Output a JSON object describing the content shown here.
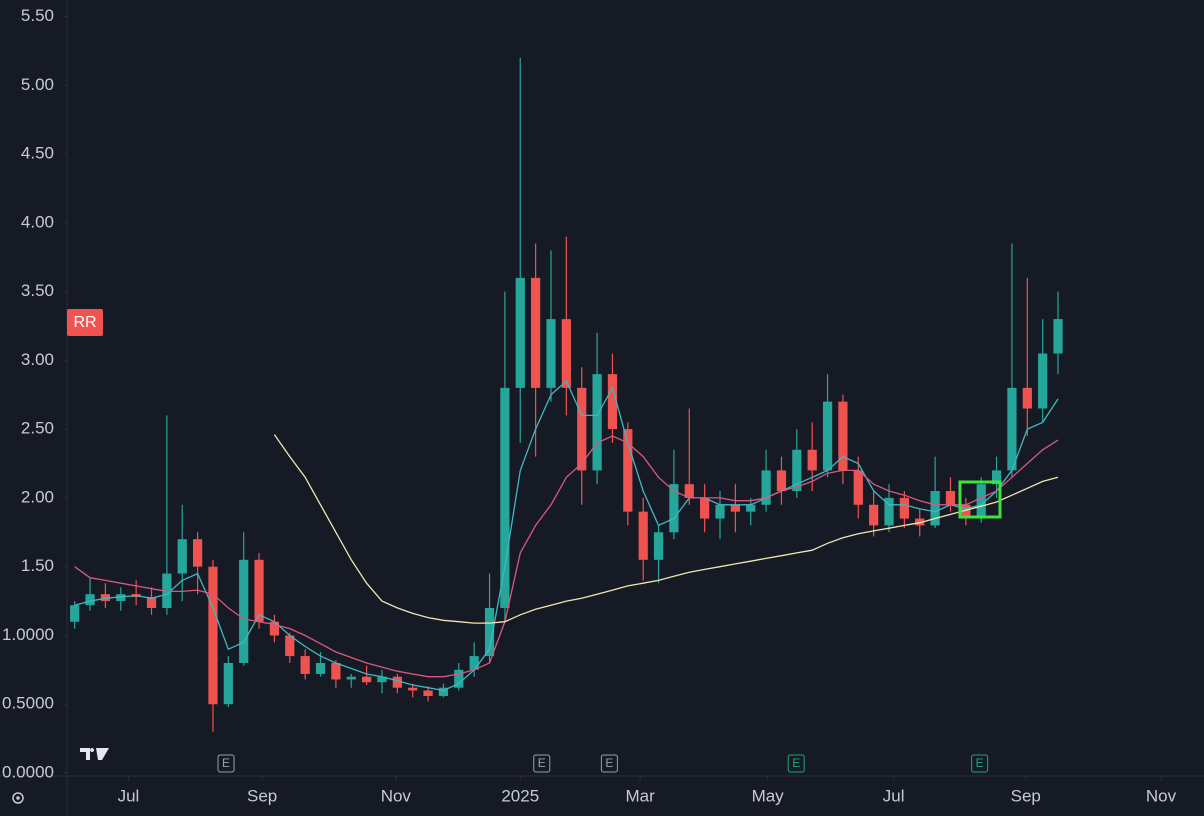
{
  "chart_data": {
    "type": "candlestick",
    "symbol_label": "RR",
    "up_color": "#26a69a",
    "down_color": "#ef5350",
    "xlim": [
      -0.5,
      73.5
    ],
    "xticks": [
      {
        "value": 3.5,
        "label": "Jul"
      },
      {
        "value": 12.2,
        "label": "Sep"
      },
      {
        "value": 20.9,
        "label": "Nov"
      },
      {
        "value": 29.0,
        "label": "2025"
      },
      {
        "value": 36.8,
        "label": "Mar"
      },
      {
        "value": 45.1,
        "label": "May"
      },
      {
        "value": 53.3,
        "label": "Jul"
      },
      {
        "value": 61.9,
        "label": "Sep"
      },
      {
        "value": 70.7,
        "label": "Nov"
      }
    ],
    "ylim": [
      0,
      5.62
    ],
    "yticks": [
      {
        "value": 0,
        "label": "0.0000"
      },
      {
        "value": 0.5,
        "label": "0.5000"
      },
      {
        "value": 1,
        "label": "1.0000"
      },
      {
        "value": 1.5,
        "label": "1.50"
      },
      {
        "value": 2,
        "label": "2.00"
      },
      {
        "value": 2.5,
        "label": "2.50"
      },
      {
        "value": 3,
        "label": "3.00"
      },
      {
        "value": 3.5,
        "label": "3.50"
      },
      {
        "value": 4,
        "label": "4.00"
      },
      {
        "value": 4.5,
        "label": "4.50"
      },
      {
        "value": 5,
        "label": "5.00"
      },
      {
        "value": 5.5,
        "label": "5.50"
      }
    ],
    "open": [
      1.1,
      1.22,
      1.3,
      1.25,
      1.3,
      1.28,
      1.2,
      1.45,
      1.7,
      1.5,
      0.5,
      0.8,
      1.55,
      1.1,
      1.0,
      0.85,
      0.72,
      0.8,
      0.68,
      0.7,
      0.66,
      0.7,
      0.62,
      0.6,
      0.56,
      0.62,
      0.75,
      0.85,
      1.2,
      2.8,
      3.6,
      2.8,
      3.3,
      2.8,
      2.2,
      2.9,
      2.5,
      1.9,
      1.55,
      1.75,
      2.1,
      2.0,
      1.85,
      1.95,
      1.9,
      1.95,
      2.2,
      2.05,
      2.35,
      2.2,
      2.7,
      2.2,
      1.95,
      1.8,
      2.0,
      1.85,
      1.8,
      2.05,
      1.95,
      1.85,
      2.1,
      2.2,
      2.8,
      2.65,
      3.05
    ],
    "high": [
      1.25,
      1.42,
      1.38,
      1.35,
      1.4,
      1.35,
      2.6,
      1.95,
      1.75,
      1.55,
      0.85,
      1.75,
      1.6,
      1.15,
      1.02,
      0.9,
      0.88,
      0.82,
      0.72,
      0.78,
      0.75,
      0.72,
      0.65,
      0.63,
      0.65,
      0.8,
      0.95,
      1.45,
      3.5,
      5.2,
      3.85,
      3.8,
      3.9,
      2.95,
      3.2,
      3.05,
      2.55,
      2.0,
      1.8,
      2.35,
      2.65,
      2.1,
      2.05,
      2.1,
      2.0,
      2.35,
      2.3,
      2.5,
      2.55,
      2.9,
      2.75,
      2.3,
      2.05,
      2.1,
      2.05,
      1.92,
      2.3,
      2.15,
      2.0,
      2.15,
      2.3,
      3.85,
      3.6,
      3.3,
      3.5
    ],
    "low": [
      1.05,
      1.18,
      1.2,
      1.18,
      1.22,
      1.15,
      1.15,
      1.25,
      1.3,
      0.3,
      0.48,
      0.78,
      1.05,
      0.95,
      0.8,
      0.68,
      0.7,
      0.62,
      0.62,
      0.64,
      0.58,
      0.58,
      0.55,
      0.52,
      0.55,
      0.6,
      0.7,
      0.8,
      1.1,
      2.4,
      2.3,
      2.7,
      2.6,
      1.95,
      2.1,
      2.4,
      1.8,
      1.4,
      1.38,
      1.7,
      1.95,
      1.75,
      1.7,
      1.75,
      1.8,
      1.9,
      1.95,
      2.0,
      2.05,
      2.15,
      2.1,
      1.85,
      1.72,
      1.75,
      1.78,
      1.72,
      1.78,
      1.9,
      1.8,
      1.82,
      2.0,
      2.15,
      2.45,
      2.55,
      2.9
    ],
    "close": [
      1.22,
      1.3,
      1.25,
      1.3,
      1.28,
      1.2,
      1.45,
      1.7,
      1.5,
      0.5,
      0.8,
      1.55,
      1.1,
      1.0,
      0.85,
      0.72,
      0.8,
      0.68,
      0.7,
      0.66,
      0.7,
      0.62,
      0.6,
      0.56,
      0.62,
      0.75,
      0.85,
      1.2,
      2.8,
      3.6,
      2.8,
      3.3,
      2.8,
      2.2,
      2.9,
      2.5,
      1.9,
      1.55,
      1.75,
      2.1,
      2.0,
      1.85,
      1.95,
      1.9,
      1.95,
      2.2,
      2.05,
      2.35,
      2.2,
      2.7,
      2.2,
      1.95,
      1.8,
      2.0,
      1.85,
      1.8,
      2.05,
      1.95,
      1.85,
      2.1,
      2.2,
      2.8,
      2.65,
      3.05,
      3.3
    ],
    "overlays": [
      {
        "color": "#3fb8c4",
        "values": [
          1.22,
          1.25,
          1.27,
          1.28,
          1.29,
          1.27,
          1.3,
          1.4,
          1.45,
          1.2,
          0.9,
          0.95,
          1.15,
          1.1,
          1.0,
          0.92,
          0.85,
          0.8,
          0.76,
          0.72,
          0.7,
          0.67,
          0.64,
          0.62,
          0.6,
          0.65,
          0.75,
          0.9,
          1.5,
          2.2,
          2.5,
          2.75,
          2.85,
          2.6,
          2.6,
          2.8,
          2.4,
          2.05,
          1.8,
          1.85,
          2.0,
          2.0,
          1.95,
          1.95,
          1.95,
          2.0,
          2.05,
          2.1,
          2.15,
          2.2,
          2.3,
          2.25,
          2.05,
          1.95,
          1.95,
          1.92,
          1.9,
          1.95,
          1.92,
          1.95,
          2.05,
          2.2,
          2.5,
          2.55,
          2.72
        ]
      },
      {
        "color": "#d9587f",
        "values": [
          1.5,
          1.42,
          1.4,
          1.38,
          1.36,
          1.34,
          1.32,
          1.32,
          1.33,
          1.3,
          1.2,
          1.12,
          1.1,
          1.08,
          1.05,
          1.0,
          0.94,
          0.88,
          0.84,
          0.8,
          0.77,
          0.74,
          0.72,
          0.7,
          0.7,
          0.72,
          0.75,
          0.8,
          1.1,
          1.6,
          1.8,
          1.95,
          2.15,
          2.25,
          2.4,
          2.45,
          2.4,
          2.3,
          2.15,
          2.05,
          2.0,
          2.0,
          2.0,
          1.98,
          1.98,
          2.0,
          2.05,
          2.08,
          2.12,
          2.18,
          2.2,
          2.2,
          2.1,
          2.05,
          2.02,
          1.98,
          1.95,
          1.95,
          1.95,
          2.0,
          2.05,
          2.15,
          2.25,
          2.35,
          2.42
        ]
      },
      {
        "color": "#f0e6b0",
        "values": [
          null,
          null,
          null,
          null,
          null,
          null,
          null,
          null,
          null,
          null,
          null,
          null,
          null,
          2.46,
          2.3,
          2.15,
          1.95,
          1.75,
          1.55,
          1.38,
          1.25,
          1.2,
          1.16,
          1.13,
          1.11,
          1.1,
          1.09,
          1.09,
          1.1,
          1.15,
          1.19,
          1.22,
          1.25,
          1.27,
          1.3,
          1.33,
          1.36,
          1.38,
          1.4,
          1.43,
          1.46,
          1.48,
          1.5,
          1.52,
          1.54,
          1.56,
          1.58,
          1.6,
          1.62,
          1.67,
          1.71,
          1.74,
          1.76,
          1.78,
          1.8,
          1.82,
          1.85,
          1.88,
          1.91,
          1.94,
          1.97,
          2.02,
          2.07,
          2.12,
          2.15
        ]
      }
    ],
    "events": [
      {
        "label": "E",
        "x": 9.85,
        "color": "#9aa0aa"
      },
      {
        "label": "E",
        "x": 30.4,
        "color": "#9aa0aa"
      },
      {
        "label": "E",
        "x": 34.8,
        "color": "#9aa0aa"
      },
      {
        "label": "E",
        "x": 46.96,
        "color": "#1fa67a"
      },
      {
        "label": "E",
        "x": 58.9,
        "color": "#1fa67a"
      }
    ]
  }
}
